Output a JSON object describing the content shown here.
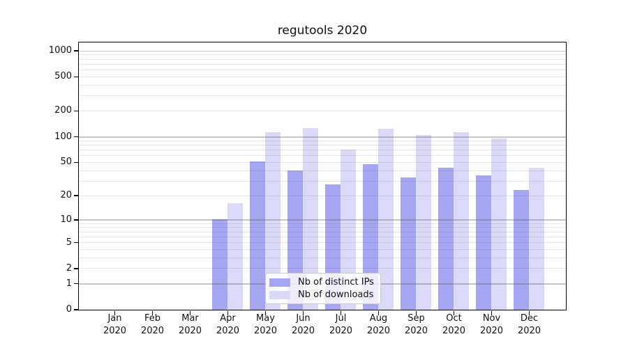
{
  "title": "regutools 2020",
  "colors": {
    "distinct_ips": "#a5a5f2",
    "downloads": "#dadaf8",
    "grid_major": "#c5c5c5",
    "grid_minor": "#e7e7e7",
    "frame": "#000000",
    "background": "#ffffff"
  },
  "legend": {
    "position": "lower center",
    "items": [
      {
        "label": "Nb of distinct IPs",
        "color": "#a5a5f2"
      },
      {
        "label": "Nb of downloads",
        "color": "#dadaf8"
      }
    ]
  },
  "chart_data": {
    "type": "bar",
    "title": "regutools 2020",
    "categories": [
      "Jan 2020",
      "Feb 2020",
      "Mar 2020",
      "Apr 2020",
      "May 2020",
      "Jun 2020",
      "Jul 2020",
      "Aug 2020",
      "Sep 2020",
      "Oct 2020",
      "Nov 2020",
      "Dec 2020"
    ],
    "series": [
      {
        "name": "Nb of distinct IPs",
        "color": "#a5a5f2",
        "values": [
          0,
          0,
          0,
          10,
          51,
          40,
          27,
          47,
          33,
          43,
          35,
          23
        ]
      },
      {
        "name": "Nb of downloads",
        "color": "#dadaf8",
        "values": [
          0,
          0,
          0,
          16,
          112,
          126,
          70,
          123,
          104,
          112,
          95,
          43
        ]
      }
    ],
    "xlabel": "",
    "ylabel": "",
    "yscale": "log1p",
    "yticks": [
      0,
      1,
      2,
      5,
      10,
      20,
      50,
      100,
      200,
      500,
      1000
    ],
    "ylim": [
      0,
      1250
    ],
    "grid": true,
    "grid_major_at": [
      1,
      10,
      100,
      1000
    ],
    "legend_position": "lower center"
  }
}
